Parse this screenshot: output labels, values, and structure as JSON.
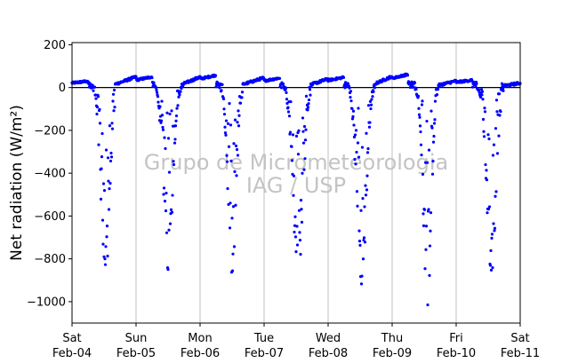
{
  "chart_data": {
    "type": "scatter",
    "ylabel": "Net radiation (W/m²)",
    "ylim": [
      -1100,
      210
    ],
    "xlim": [
      0,
      7
    ],
    "x_unit": "days since Sat Feb-04 00:00",
    "yticks": [
      200,
      0,
      -200,
      -400,
      -600,
      -800,
      -1000
    ],
    "ytick_labels": [
      "200",
      "0",
      "−200",
      "−400",
      "−600",
      "−800",
      "−1000"
    ],
    "xticks": [
      0,
      1,
      2,
      3,
      4,
      5,
      6,
      7
    ],
    "xtick_labels": [
      [
        "Sat",
        "Feb-04"
      ],
      [
        "Sun",
        "Feb-05"
      ],
      [
        "Mon",
        "Feb-06"
      ],
      [
        "Tue",
        "Feb-07"
      ],
      [
        "Wed",
        "Feb-08"
      ],
      [
        "Thu",
        "Feb-09"
      ],
      [
        "Fri",
        "Feb-10"
      ],
      [
        "Sat",
        "Feb-11"
      ]
    ],
    "grid": "vertical",
    "zero_line": true,
    "marker_color": "#0000ff",
    "watermark": [
      "Grupo de Micrometeorologia",
      "IAG / USP"
    ],
    "days": [
      {
        "night_start": 0.0,
        "night_end": 0.25,
        "night_level": 30,
        "rise": 0.36,
        "peak_center": 0.52,
        "peak_spread": 0.1,
        "peak_depth": -900,
        "set": 0.67
      },
      {
        "night_start": 0.67,
        "night_end": 1.25,
        "night_level": 50,
        "rise": 1.33,
        "peak_center": 1.5,
        "peak_spread": 0.1,
        "peak_depth": -880,
        "set": 1.74
      },
      {
        "night_start": 1.74,
        "night_end": 2.25,
        "night_level": 58,
        "rise": 2.34,
        "peak_center": 2.5,
        "peak_spread": 0.09,
        "peak_depth": -870,
        "set": 2.66
      },
      {
        "night_start": 2.66,
        "night_end": 3.25,
        "night_level": 45,
        "rise": 3.33,
        "peak_center": 3.53,
        "peak_spread": 0.11,
        "peak_depth": -900,
        "set": 3.74
      },
      {
        "night_start": 3.74,
        "night_end": 4.25,
        "night_level": 48,
        "rise": 4.31,
        "peak_center": 4.52,
        "peak_spread": 0.1,
        "peak_depth": -1000,
        "set": 4.74
      },
      {
        "night_start": 4.74,
        "night_end": 5.25,
        "night_level": 62,
        "rise": 5.33,
        "peak_center": 5.55,
        "peak_spread": 0.09,
        "peak_depth": -1020,
        "set": 5.72
      },
      {
        "night_start": 5.72,
        "night_end": 6.25,
        "night_level": 35,
        "rise": 6.3,
        "peak_center": 6.55,
        "peak_spread": 0.1,
        "peak_depth": -910,
        "set": 6.74
      },
      {
        "night_start": 6.74,
        "night_end": 7.0,
        "night_level": 25,
        "rise": 7.0,
        "peak_center": 7.5,
        "peak_spread": 0.1,
        "peak_depth": 0,
        "set": 7.0
      }
    ]
  }
}
